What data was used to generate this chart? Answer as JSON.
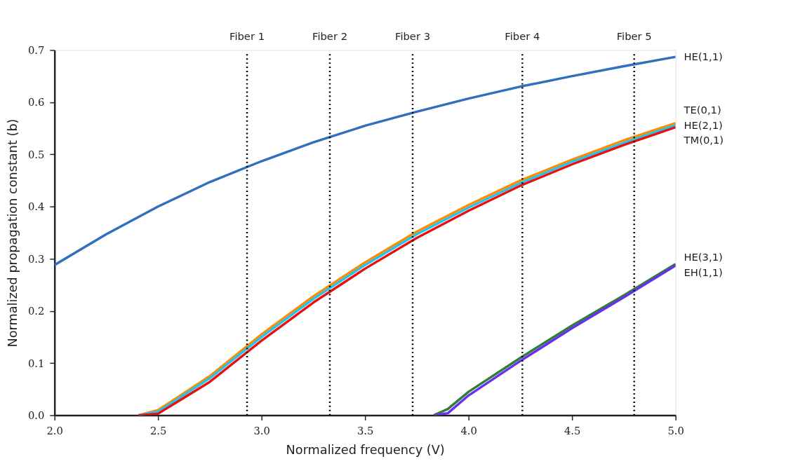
{
  "chart_data": {
    "type": "line",
    "xlabel": "Normalized frequency (V)",
    "ylabel": "Normalized propagation constant (b)",
    "xlim": [
      2.0,
      5.0
    ],
    "ylim": [
      0.0,
      0.7
    ],
    "xticks": [
      {
        "value": 2.0,
        "label": "2.0"
      },
      {
        "value": 2.5,
        "label": "2.5"
      },
      {
        "value": 3.0,
        "label": "3.0"
      },
      {
        "value": 3.5,
        "label": "3.5"
      },
      {
        "value": 4.0,
        "label": "4.0"
      },
      {
        "value": 4.5,
        "label": "4.5"
      },
      {
        "value": 5.0,
        "label": "5.0"
      }
    ],
    "yticks": [
      {
        "value": 0.0,
        "label": "0.0"
      },
      0.1,
      0.2,
      0.3,
      0.4,
      0.5,
      0.6,
      0.7
    ],
    "grid": false,
    "marker": "none",
    "line_style": "solid",
    "series": [
      {
        "name": "HE(1,1)",
        "color": "#2f6fbe",
        "x": [
          2.0,
          2.25,
          2.5,
          2.75,
          3.0,
          3.25,
          3.5,
          3.75,
          4.0,
          4.25,
          4.5,
          4.75,
          5.0
        ],
        "values": [
          0.288,
          0.347,
          0.4,
          0.447,
          0.487,
          0.523,
          0.555,
          0.582,
          0.607,
          0.63,
          0.65,
          0.669,
          0.687
        ]
      },
      {
        "name": "TE(0,1)",
        "color": "#ff8c00",
        "x": [
          2.405,
          2.5,
          2.75,
          3.0,
          3.25,
          3.5,
          3.75,
          4.0,
          4.25,
          4.5,
          4.75,
          5.0
        ],
        "values": [
          0.0,
          0.01,
          0.075,
          0.155,
          0.228,
          0.293,
          0.352,
          0.403,
          0.45,
          0.49,
          0.527,
          0.56
        ]
      },
      {
        "name": "HE(2,1)",
        "color": "#22c4ee",
        "x": [
          2.405,
          2.5,
          2.75,
          3.0,
          3.25,
          3.5,
          3.75,
          4.0,
          4.25,
          4.5,
          4.75,
          5.0
        ],
        "values": [
          0.0,
          0.007,
          0.071,
          0.15,
          0.223,
          0.288,
          0.347,
          0.398,
          0.445,
          0.486,
          0.522,
          0.556
        ]
      },
      {
        "name": "TM(0,1)",
        "color": "#e81010",
        "x": [
          2.405,
          2.5,
          2.75,
          3.0,
          3.25,
          3.5,
          3.75,
          4.0,
          4.25,
          4.5,
          4.75,
          5.0
        ],
        "values": [
          0.0,
          0.003,
          0.064,
          0.143,
          0.216,
          0.281,
          0.34,
          0.392,
          0.44,
          0.481,
          0.518,
          0.552
        ]
      },
      {
        "name": "HE(3,1)",
        "color": "#2e7d3a",
        "x": [
          3.832,
          3.9,
          4.0,
          4.25,
          4.5,
          4.75,
          5.0
        ],
        "values": [
          0.0,
          0.012,
          0.045,
          0.11,
          0.172,
          0.23,
          0.29
        ]
      },
      {
        "name": "EH(1,1)",
        "color": "#6a2ef0",
        "x": [
          3.832,
          3.9,
          4.0,
          4.25,
          4.5,
          4.75,
          5.0
        ],
        "values": [
          0.0,
          0.004,
          0.038,
          0.104,
          0.167,
          0.226,
          0.287
        ]
      }
    ],
    "ref_lines": [
      {
        "axis": "x",
        "value": 2.93,
        "label": "Fiber 1",
        "color": "#000000",
        "line_style": "dotted"
      },
      {
        "axis": "x",
        "value": 3.33,
        "label": "Fiber 2",
        "color": "#000000",
        "line_style": "dotted"
      },
      {
        "axis": "x",
        "value": 3.73,
        "label": "Fiber 3",
        "color": "#000000",
        "line_style": "dotted"
      },
      {
        "axis": "x",
        "value": 4.26,
        "label": "Fiber 4",
        "color": "#000000",
        "line_style": "dotted"
      },
      {
        "axis": "x",
        "value": 4.8,
        "label": "Fiber 5",
        "color": "#000000",
        "line_style": "dotted"
      }
    ]
  }
}
